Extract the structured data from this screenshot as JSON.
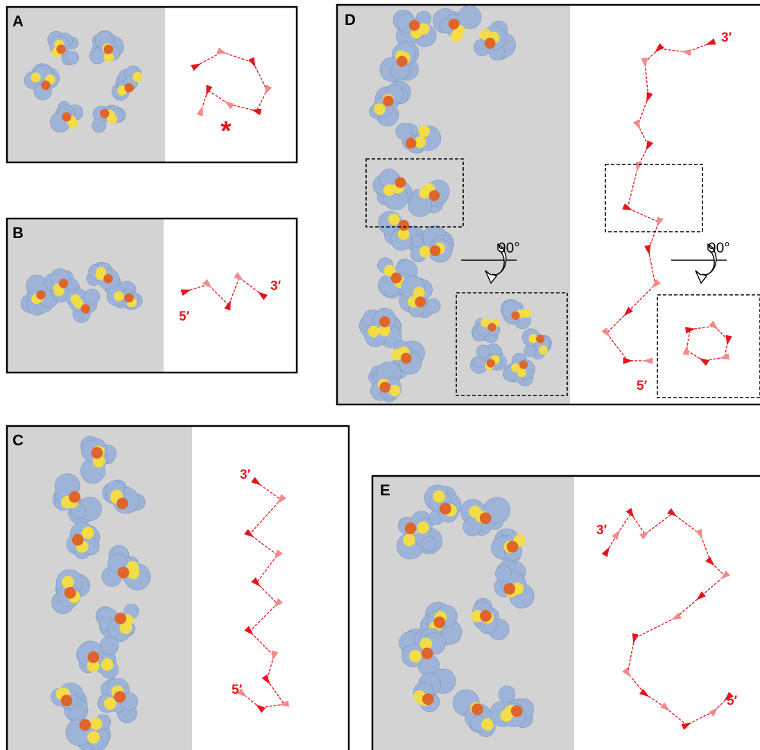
{
  "panels": [
    {
      "label": "A",
      "mark": "*"
    },
    {
      "label": "B",
      "end3": "3′",
      "end5": "5′"
    },
    {
      "label": "C",
      "end3": "3′",
      "end5": "5′"
    },
    {
      "label": "D",
      "end3": "3′",
      "end5": "5′",
      "rotation_left": "90°",
      "rotation_right": "90°"
    },
    {
      "label": "E",
      "end3": "3′",
      "end5": "5′"
    }
  ]
}
